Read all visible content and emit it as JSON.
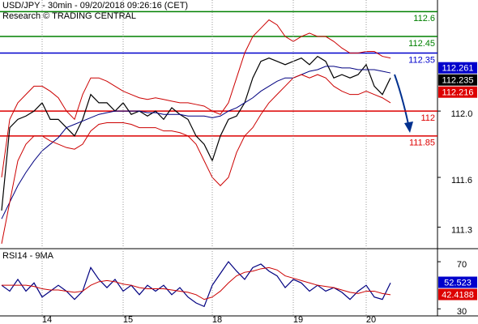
{
  "chart_data": [
    {
      "type": "line",
      "title": "USD/JPY - 30min - 09/20/2018 09:26:16 (CET)",
      "subtitle": "Research © TRADING CENTRAL",
      "ylim": [
        111.17,
        112.67
      ],
      "yticks": [
        {
          "value": 112.0,
          "label": "112.0"
        },
        111.6,
        111.3
      ],
      "series": [
        {
          "color": "#000000",
          "values": [
            111.4,
            111.9,
            111.95,
            111.97,
            112.0,
            112.05,
            111.95,
            111.95,
            111.9,
            111.85,
            111.95,
            112.1,
            112.05,
            112.05,
            112.0,
            112.05,
            111.98,
            112.0,
            111.97,
            112.0,
            111.95,
            112.02,
            111.98,
            111.95,
            111.85,
            111.8,
            111.7,
            111.85,
            111.95,
            111.97,
            112.05,
            112.2,
            112.3,
            112.32,
            112.3,
            112.28,
            112.3,
            112.32,
            112.28,
            112.33,
            112.3,
            112.2,
            112.22,
            112.2,
            112.22,
            112.28,
            112.15,
            112.1,
            112.2
          ]
        },
        {
          "color": "#000080",
          "values": [
            111.35,
            111.45,
            111.55,
            111.63,
            111.7,
            111.76,
            111.8,
            111.84,
            111.9,
            111.92,
            111.94,
            111.96,
            111.98,
            111.99,
            112.0,
            112.0,
            112.0,
            112.0,
            111.99,
            111.99,
            111.98,
            111.98,
            111.98,
            111.97,
            111.97,
            111.97,
            111.96,
            111.97,
            112.0,
            112.02,
            112.05,
            112.08,
            112.12,
            112.15,
            112.18,
            112.2,
            112.2,
            112.22,
            112.24,
            112.25,
            112.27,
            112.27,
            112.26,
            112.26,
            112.25,
            112.25,
            112.25,
            112.24,
            112.23
          ]
        },
        {
          "color": "#cc0000",
          "values": [
            111.6,
            111.95,
            112.05,
            112.1,
            112.15,
            112.15,
            112.12,
            112.08,
            112.0,
            111.95,
            112.1,
            112.2,
            112.2,
            112.18,
            112.15,
            112.12,
            112.1,
            112.08,
            112.07,
            112.08,
            112.07,
            112.06,
            112.05,
            112.05,
            112.04,
            112.03,
            112.0,
            111.98,
            112.05,
            112.2,
            112.35,
            112.45,
            112.5,
            112.55,
            112.52,
            112.45,
            112.42,
            112.45,
            112.47,
            112.45,
            112.45,
            112.42,
            112.38,
            112.35,
            112.35,
            112.36,
            112.36,
            112.33,
            112.32
          ]
        },
        {
          "color": "#cc0000",
          "values": [
            111.2,
            111.45,
            111.7,
            111.8,
            111.85,
            111.85,
            111.82,
            111.8,
            111.78,
            111.77,
            111.8,
            111.88,
            111.92,
            111.93,
            111.93,
            111.93,
            111.92,
            111.9,
            111.9,
            111.9,
            111.88,
            111.88,
            111.87,
            111.85,
            111.8,
            111.7,
            111.6,
            111.55,
            111.6,
            111.75,
            111.85,
            111.9,
            111.98,
            112.05,
            112.1,
            112.15,
            112.2,
            112.22,
            112.2,
            112.22,
            112.2,
            112.15,
            112.12,
            112.1,
            112.1,
            112.12,
            112.1,
            112.08,
            112.05
          ]
        }
      ],
      "levels": [
        {
          "value": 112.6,
          "color": "#008000"
        },
        {
          "value": 112.45,
          "color": "#008000"
        },
        {
          "value": 112.35,
          "color": "#0000cc"
        },
        {
          "value": 112,
          "color": "#dd0000"
        },
        {
          "value": 111.85,
          "color": "#dd0000"
        }
      ],
      "price_markers": [
        {
          "value": 112.261,
          "color": "#0000cc"
        },
        {
          "value": 112.235,
          "color": "#000000"
        },
        {
          "value": 112.216,
          "color": "#dd0000"
        }
      ]
    },
    {
      "type": "line",
      "title": "RSI14 - 9MA",
      "categories": [
        null,
        null,
        null,
        null,
        null,
        "14",
        null,
        null,
        null,
        null,
        null,
        null,
        null,
        null,
        null,
        "15",
        null,
        null,
        null,
        null,
        null,
        null,
        null,
        null,
        null,
        null,
        "18",
        null,
        null,
        null,
        null,
        null,
        null,
        null,
        null,
        null,
        "19",
        null,
        null,
        null,
        null,
        null,
        null,
        null,
        null,
        "20",
        null,
        null,
        null
      ],
      "ylim": [
        24,
        79
      ],
      "yticks": [
        70,
        30
      ],
      "series": [
        {
          "color": "#000080",
          "values": [
            50,
            45,
            55,
            45,
            52,
            40,
            45,
            50,
            45,
            38,
            45,
            65,
            55,
            48,
            55,
            45,
            50,
            42,
            50,
            45,
            50,
            42,
            48,
            40,
            35,
            32,
            50,
            60,
            70,
            62,
            55,
            65,
            68,
            62,
            58,
            48,
            55,
            52,
            45,
            50,
            45,
            48,
            44,
            38,
            45,
            50,
            40,
            38,
            52
          ]
        },
        {
          "color": "#cc0000",
          "values": [
            50,
            50,
            50,
            50,
            49,
            47,
            46,
            46,
            45,
            44,
            45,
            50,
            53,
            54,
            53,
            51,
            50,
            48,
            47,
            47,
            47,
            46,
            45,
            44,
            42,
            38,
            40,
            45,
            52,
            58,
            61,
            62,
            64,
            65,
            63,
            58,
            56,
            54,
            52,
            50,
            49,
            48,
            46,
            44,
            43,
            45,
            45,
            43,
            42
          ]
        }
      ],
      "price_markers": [
        {
          "value": 52.523,
          "color": "#0000cc"
        },
        {
          "value": 42.4188,
          "color": "#dd0000"
        }
      ]
    }
  ]
}
